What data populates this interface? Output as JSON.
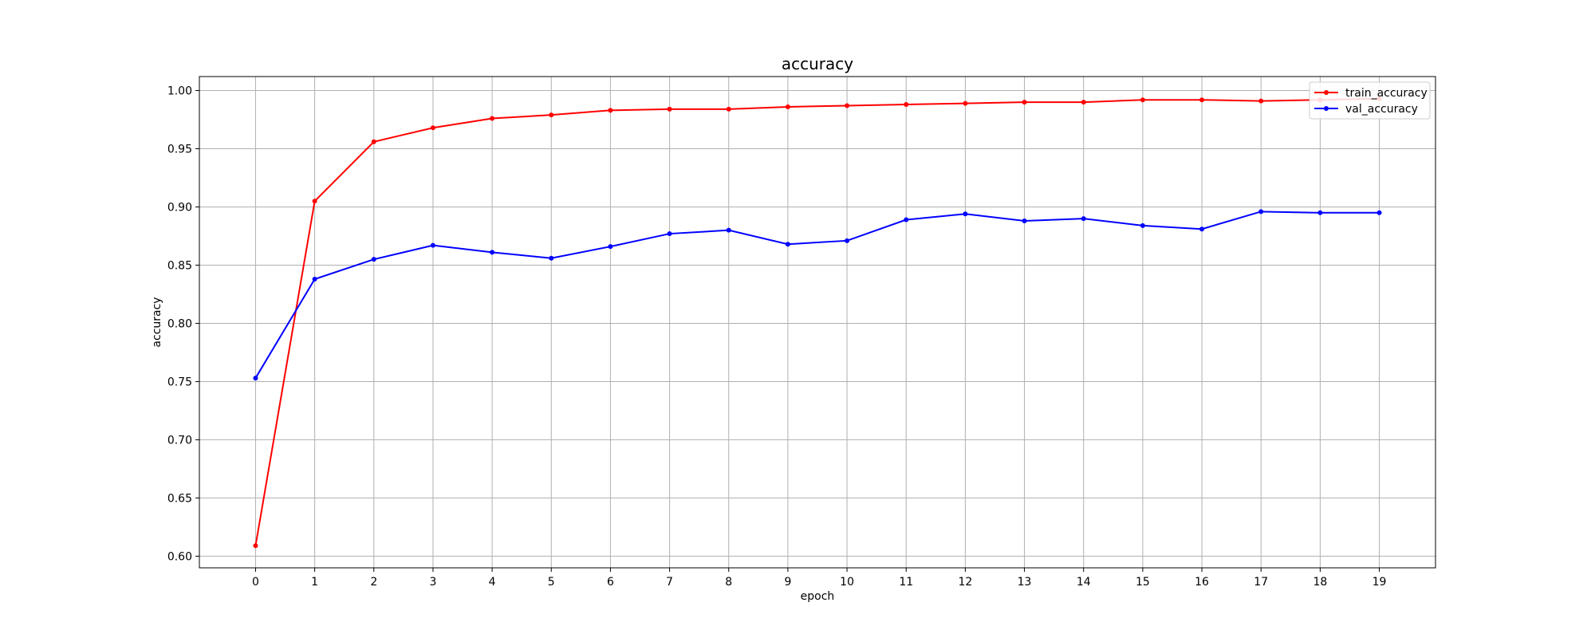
{
  "chart_data": {
    "type": "line",
    "title": "accuracy",
    "xlabel": "epoch",
    "ylabel": "accuracy",
    "x": [
      0,
      1,
      2,
      3,
      4,
      5,
      6,
      7,
      8,
      9,
      10,
      11,
      12,
      13,
      14,
      15,
      16,
      17,
      18,
      19
    ],
    "xticks": [
      "0",
      "1",
      "2",
      "3",
      "4",
      "5",
      "6",
      "7",
      "8",
      "9",
      "10",
      "11",
      "12",
      "13",
      "14",
      "15",
      "16",
      "17",
      "18",
      "19"
    ],
    "yticks": [
      "0.60",
      "0.65",
      "0.70",
      "0.75",
      "0.80",
      "0.85",
      "0.90",
      "0.95",
      "1.00"
    ],
    "ylim": [
      0.59,
      1.012
    ],
    "xlim": [
      -0.95,
      19.95
    ],
    "grid": true,
    "legend_position": "top-right",
    "series": [
      {
        "name": "train_accuracy",
        "color": "#ff0000",
        "values": [
          0.609,
          0.905,
          0.956,
          0.968,
          0.976,
          0.979,
          0.983,
          0.984,
          0.984,
          0.986,
          0.987,
          0.988,
          0.989,
          0.99,
          0.99,
          0.992,
          0.992,
          0.991,
          0.992,
          0.993
        ]
      },
      {
        "name": "val_accuracy",
        "color": "#0000ff",
        "values": [
          0.753,
          0.838,
          0.855,
          0.867,
          0.861,
          0.856,
          0.866,
          0.877,
          0.88,
          0.868,
          0.871,
          0.889,
          0.894,
          0.888,
          0.89,
          0.884,
          0.881,
          0.896,
          0.895,
          0.895
        ]
      }
    ]
  }
}
